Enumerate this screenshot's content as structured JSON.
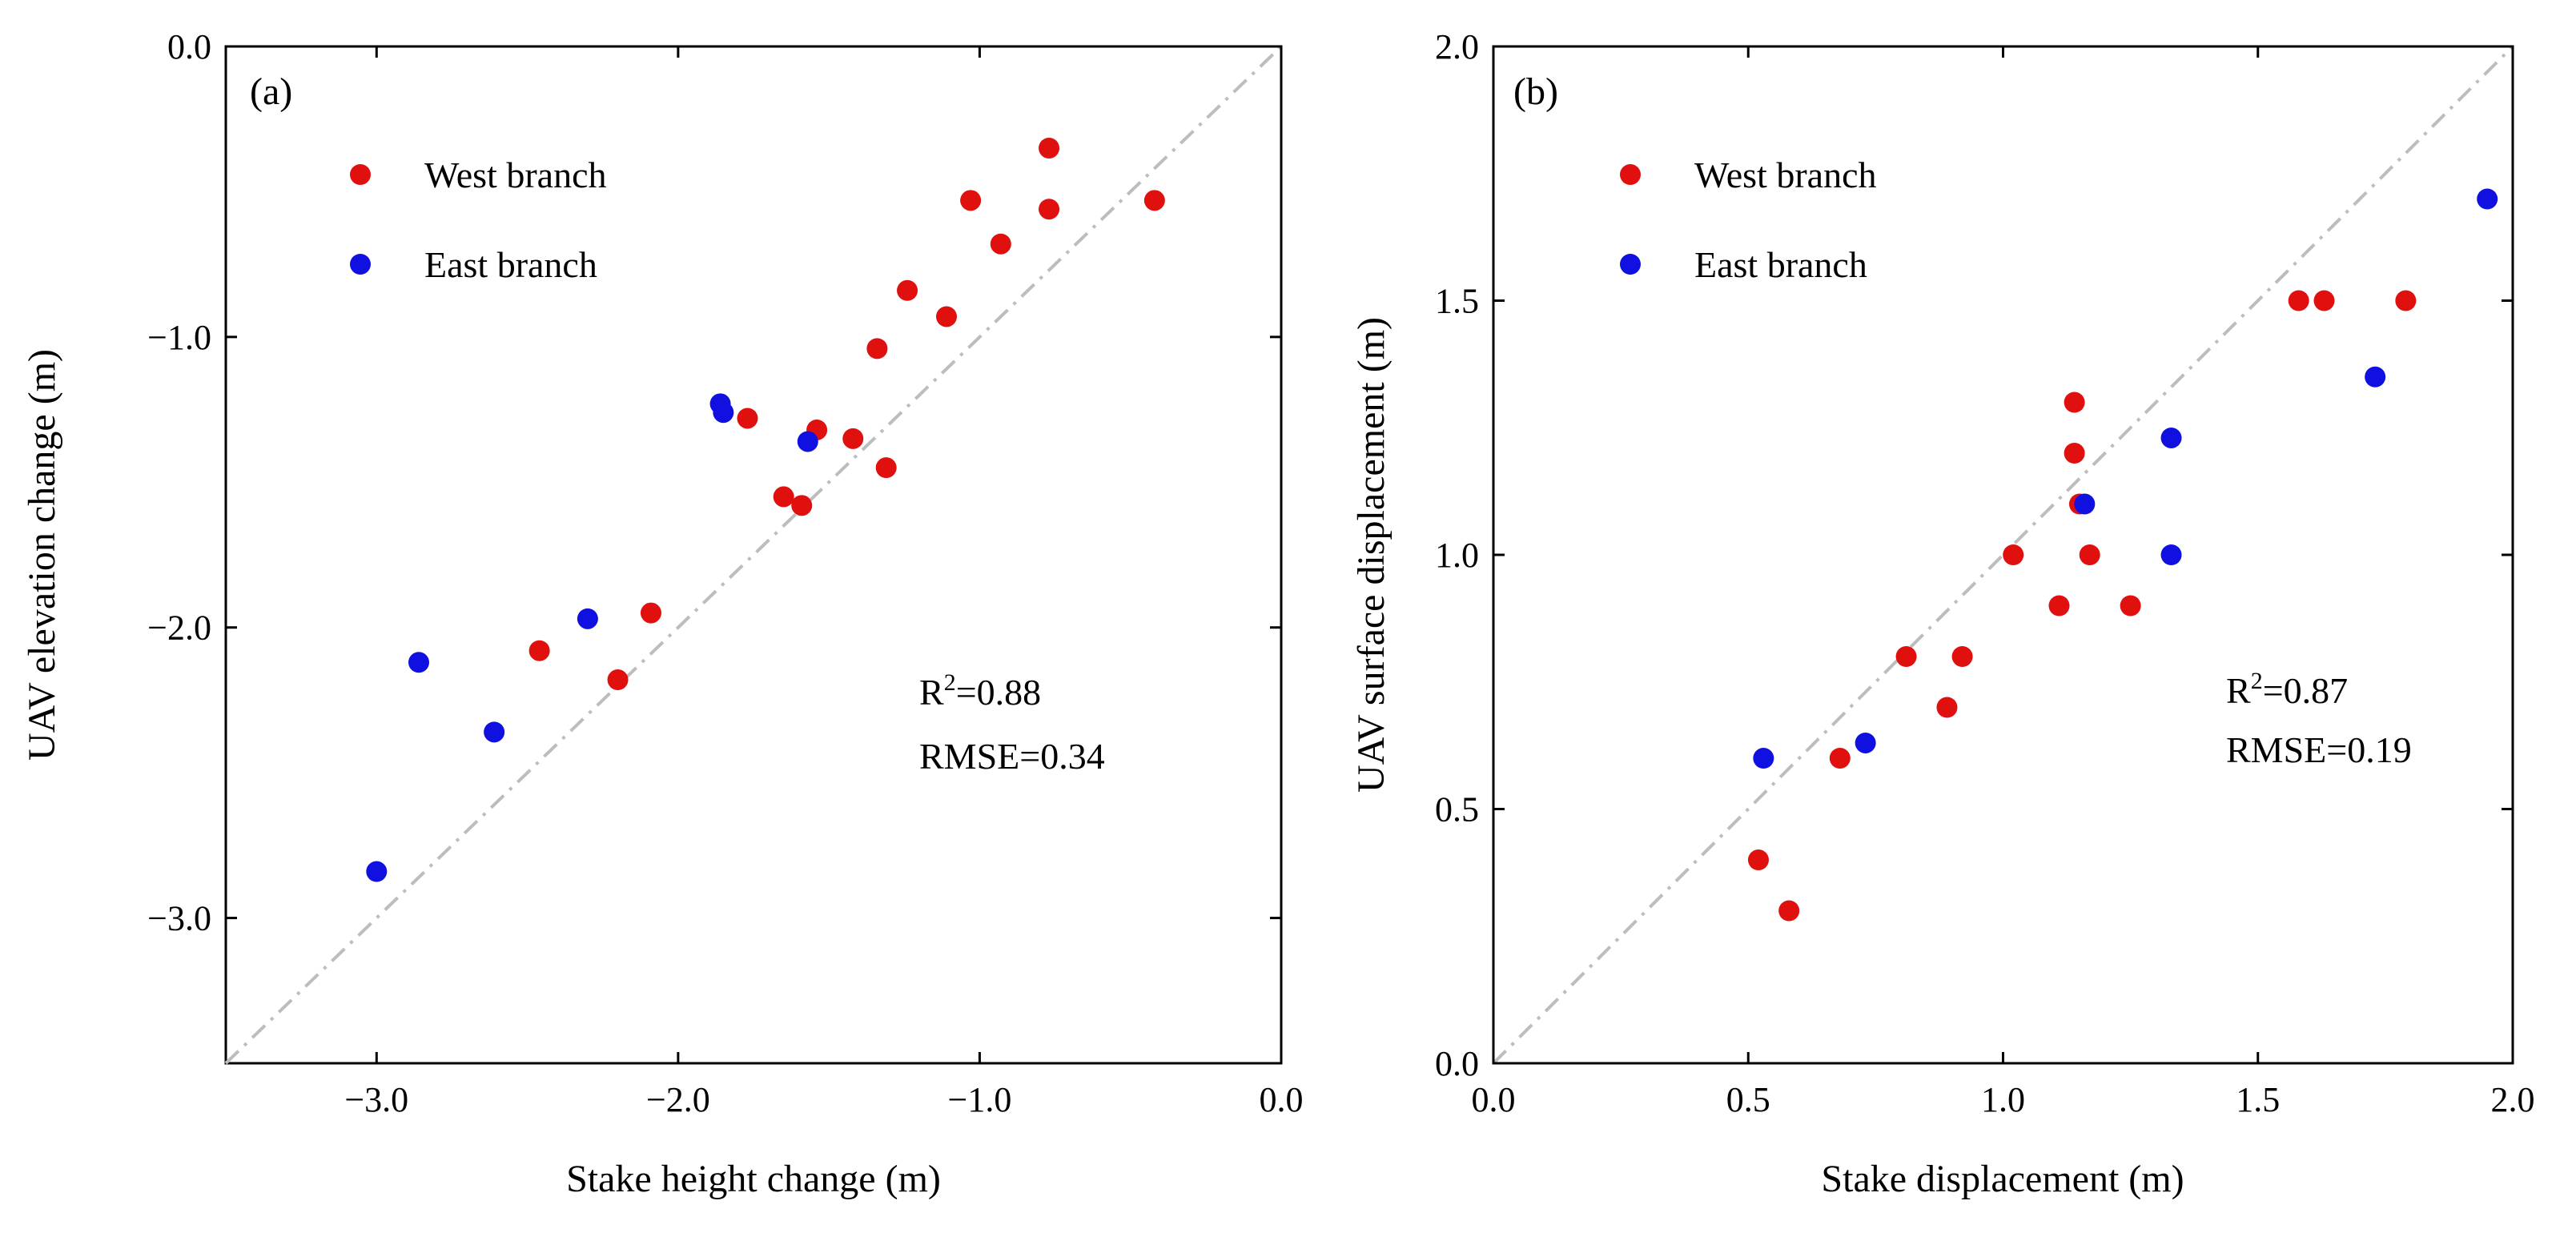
{
  "colors": {
    "west": "#e0100f",
    "east": "#1010e0",
    "one_to_one": "#bdbdbd"
  },
  "chart_data": [
    {
      "type": "scatter",
      "panel_label": "(a)",
      "xlabel": "Stake height change (m)",
      "ylabel": "UAV elevation change (m)",
      "xlim": [
        -3.5,
        0.0
      ],
      "ylim": [
        -3.5,
        0.0
      ],
      "xticks": [
        -3.0,
        -2.0,
        -1.0,
        0.0
      ],
      "xtick_labels": [
        "−3.0",
        "−2.0",
        "−1.0",
        "0.0"
      ],
      "yticks": [
        0.0,
        -1.0,
        -2.0,
        -3.0
      ],
      "ytick_labels": [
        "0.0",
        "−1.0",
        "−2.0",
        "−3.0"
      ],
      "legend": {
        "position": "top-left",
        "entries": [
          "West branch",
          "East branch"
        ]
      },
      "stats": {
        "r2_prefix": "R",
        "r2_sup": "2",
        "r2_value": "=0.88",
        "rmse": "RMSE=0.34"
      },
      "series": [
        {
          "name": "West branch",
          "x": [
            -0.77,
            -1.03,
            -0.77,
            -0.42,
            -0.93,
            -1.24,
            -1.11,
            -1.34,
            -1.77,
            -1.54,
            -1.42,
            -1.31,
            -1.65,
            -1.59,
            -2.09,
            -2.46,
            -2.2
          ],
          "y": [
            -0.35,
            -0.53,
            -0.56,
            -0.53,
            -0.68,
            -0.84,
            -0.93,
            -1.04,
            -1.28,
            -1.32,
            -1.35,
            -1.45,
            -1.55,
            -1.58,
            -1.95,
            -2.08,
            -2.18
          ]
        },
        {
          "name": "East branch",
          "x": [
            -1.86,
            -1.85,
            -1.57,
            -2.3,
            -2.86,
            -2.61,
            -3.0
          ],
          "y": [
            -1.23,
            -1.26,
            -1.36,
            -1.97,
            -2.12,
            -2.36,
            -2.84
          ]
        }
      ]
    },
    {
      "type": "scatter",
      "panel_label": "(b)",
      "xlabel": "Stake displacement (m)",
      "ylabel": "UAV surface displacement (m)",
      "xlim": [
        0.0,
        2.0
      ],
      "ylim": [
        0.0,
        2.0
      ],
      "xticks": [
        0.0,
        0.5,
        1.0,
        1.5,
        2.0
      ],
      "xtick_labels": [
        "0.0",
        "0.5",
        "1.0",
        "1.5",
        "2.0"
      ],
      "yticks": [
        0.0,
        0.5,
        1.0,
        1.5,
        2.0
      ],
      "ytick_labels": [
        "0.0",
        "0.5",
        "1.0",
        "1.5",
        "2.0"
      ],
      "legend": {
        "position": "top-left",
        "entries": [
          "West branch",
          "East branch"
        ]
      },
      "stats": {
        "r2_prefix": "R",
        "r2_sup": "2",
        "r2_value": "=0.87",
        "rmse": "RMSE=0.19"
      },
      "series": [
        {
          "name": "West branch",
          "x": [
            0.52,
            0.58,
            0.68,
            0.81,
            0.89,
            0.92,
            1.02,
            1.11,
            1.14,
            1.14,
            1.15,
            1.17,
            1.25,
            1.58,
            1.63,
            1.79
          ],
          "y": [
            0.4,
            0.3,
            0.6,
            0.8,
            0.7,
            0.8,
            1.0,
            0.9,
            1.3,
            1.2,
            1.1,
            1.0,
            0.9,
            1.5,
            1.5,
            1.5
          ]
        },
        {
          "name": "East branch",
          "x": [
            0.53,
            0.73,
            1.16,
            1.33,
            1.33,
            1.73,
            1.95
          ],
          "y": [
            0.6,
            0.63,
            1.1,
            1.23,
            1.0,
            1.35,
            1.7
          ]
        }
      ]
    }
  ]
}
